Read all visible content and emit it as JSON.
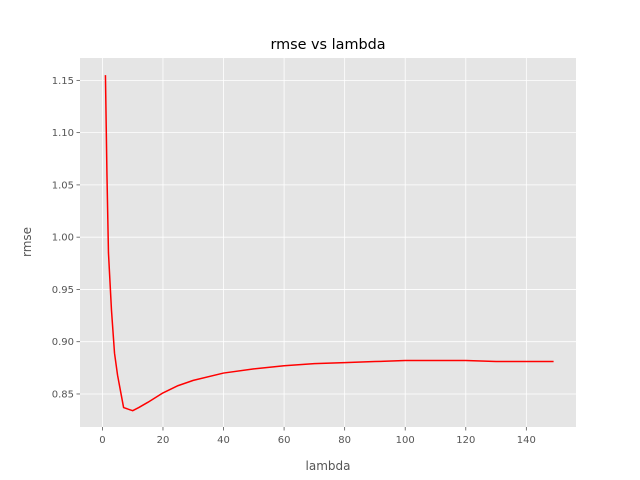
{
  "chart_data": {
    "type": "line",
    "title": "rmse vs lambda",
    "xlabel": "lambda",
    "ylabel": "rmse",
    "xlim": [
      -7.4,
      156.4
    ],
    "ylim": [
      0.8184,
      1.1714
    ],
    "xticks": [
      0,
      20,
      40,
      60,
      80,
      100,
      120,
      140
    ],
    "yticks": [
      0.85,
      0.9,
      0.95,
      1.0,
      1.05,
      1.1,
      1.15
    ],
    "xtick_labels": [
      "0",
      "20",
      "40",
      "60",
      "80",
      "100",
      "120",
      "140"
    ],
    "ytick_labels": [
      "0.85",
      "0.90",
      "0.95",
      "1.00",
      "1.05",
      "1.10",
      "1.15"
    ],
    "grid": true,
    "legend": "none",
    "series": [
      {
        "color": "#ff0000",
        "x": [
          1,
          1.5,
          2,
          3,
          4,
          5,
          7,
          9,
          10,
          12,
          15,
          20,
          25,
          30,
          40,
          50,
          60,
          70,
          80,
          90,
          100,
          110,
          120,
          130,
          140,
          149
        ],
        "y": [
          1.155,
          1.06,
          0.985,
          0.93,
          0.889,
          0.868,
          0.837,
          0.835,
          0.834,
          0.837,
          0.842,
          0.851,
          0.858,
          0.863,
          0.87,
          0.874,
          0.877,
          0.879,
          0.88,
          0.881,
          0.882,
          0.882,
          0.882,
          0.881,
          0.881,
          0.881
        ]
      }
    ]
  },
  "colors": {
    "plot_background": "#e5e5e5",
    "grid": "#ffffff",
    "line": "#ff0000"
  }
}
